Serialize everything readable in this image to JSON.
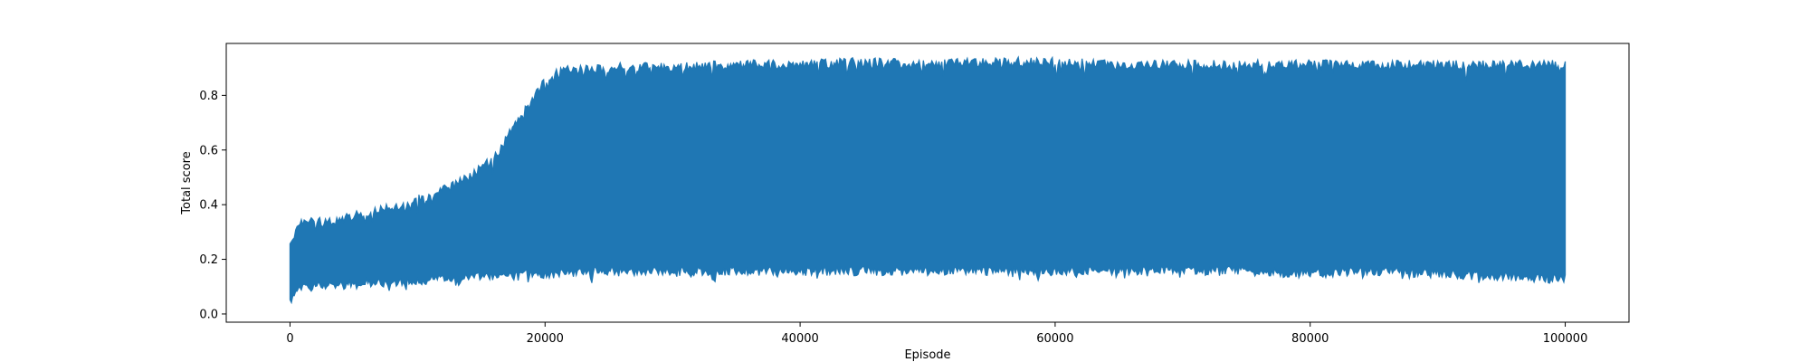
{
  "chart_data": {
    "type": "area",
    "title": "",
    "xlabel": "Episode",
    "ylabel": "Total score",
    "xlim": [
      -5000,
      105000
    ],
    "ylim": [
      -0.03,
      0.99
    ],
    "xticks": [
      0,
      20000,
      40000,
      60000,
      80000,
      100000
    ],
    "xtick_labels": [
      "0",
      "20000",
      "40000",
      "60000",
      "80000",
      "100000"
    ],
    "yticks": [
      0.0,
      0.2,
      0.4,
      0.6,
      0.8
    ],
    "ytick_labels": [
      "0.0",
      "0.2",
      "0.4",
      "0.6",
      "0.8"
    ],
    "grid": false,
    "legend": "none",
    "series_color": "#1f77b4",
    "series": [
      {
        "description": "dense noisy per-episode score; envelope shown as upper and lower bounds",
        "x": [
          0,
          1000,
          3000,
          5000,
          7000,
          9000,
          11000,
          13000,
          15000,
          16500,
          17500,
          18500,
          19500,
          20500,
          21500,
          23000,
          26000,
          30000,
          35000,
          40000,
          45000,
          50000,
          55000,
          60000,
          65000,
          70000,
          75000,
          80000,
          85000,
          90000,
          95000,
          100000
        ],
        "upper": [
          0.28,
          0.36,
          0.35,
          0.38,
          0.4,
          0.42,
          0.45,
          0.49,
          0.55,
          0.62,
          0.7,
          0.78,
          0.84,
          0.89,
          0.91,
          0.91,
          0.92,
          0.92,
          0.93,
          0.93,
          0.94,
          0.93,
          0.94,
          0.94,
          0.93,
          0.93,
          0.93,
          0.93,
          0.93,
          0.93,
          0.93,
          0.93
        ],
        "lower": [
          0.03,
          0.08,
          0.09,
          0.09,
          0.1,
          0.1,
          0.11,
          0.11,
          0.12,
          0.12,
          0.12,
          0.13,
          0.13,
          0.13,
          0.13,
          0.14,
          0.14,
          0.14,
          0.14,
          0.14,
          0.14,
          0.14,
          0.14,
          0.14,
          0.14,
          0.14,
          0.14,
          0.13,
          0.14,
          0.13,
          0.12,
          0.11
        ]
      }
    ]
  }
}
